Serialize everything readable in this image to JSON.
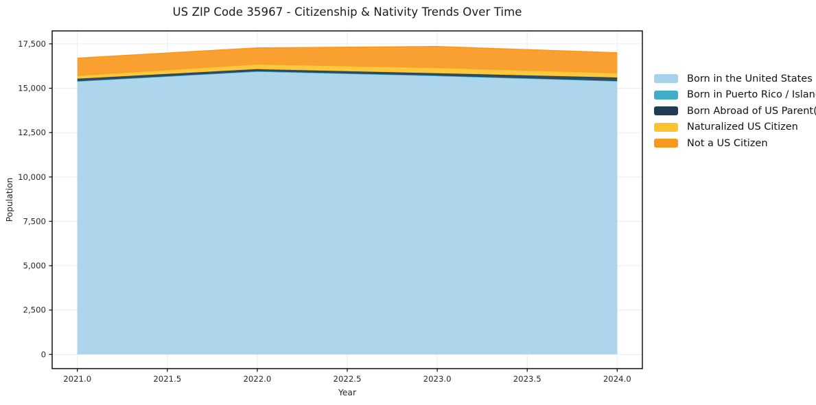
{
  "title": "US ZIP Code 35967 - Citizenship & Nativity Trends Over Time",
  "chart_data": {
    "type": "area",
    "stacked": true,
    "x": [
      2021,
      2022,
      2023,
      2024
    ],
    "series": [
      {
        "name": "Born in the United States",
        "color": "#a6d3ea",
        "values": [
          15380,
          15930,
          15690,
          15390
        ]
      },
      {
        "name": "Born in Puerto Rico / Islands",
        "color": "#41aec6",
        "values": [
          15,
          20,
          20,
          15
        ]
      },
      {
        "name": "Born Abroad of US Parent(s)",
        "color": "#1e3d54",
        "values": [
          140,
          120,
          130,
          195
        ]
      },
      {
        "name": "Naturalized US Citizen",
        "color": "#fdc32f",
        "values": [
          160,
          270,
          300,
          240
        ]
      },
      {
        "name": "Not a US Citizen",
        "color": "#f8981f",
        "values": [
          1000,
          930,
          1210,
          1160
        ]
      }
    ],
    "xlabel": "Year",
    "ylabel": "Population",
    "x_ticks": {
      "values": [
        2021.0,
        2021.5,
        2022.0,
        2022.5,
        2023.0,
        2023.5,
        2024.0
      ],
      "labels": [
        "2021.0",
        "2021.5",
        "2022.0",
        "2022.5",
        "2023.0",
        "2023.5",
        "2024.0"
      ]
    },
    "y_ticks": {
      "values": [
        0,
        2500,
        5000,
        7500,
        10000,
        12500,
        15000,
        17500
      ],
      "labels": [
        "0",
        "2,500",
        "5,000",
        "7,500",
        "10,000",
        "12,500",
        "15,000",
        "17,500"
      ]
    },
    "xlim": [
      2020.86,
      2024.14
    ],
    "ylim": [
      -800,
      18230
    ],
    "grid": true,
    "legend_position": "right"
  },
  "styles": {
    "background": "#ffffff",
    "grid_color": "#ebebf2",
    "axis_color": "#000000",
    "tick_text_color": "#262626",
    "fill_opacity": 0.92
  }
}
